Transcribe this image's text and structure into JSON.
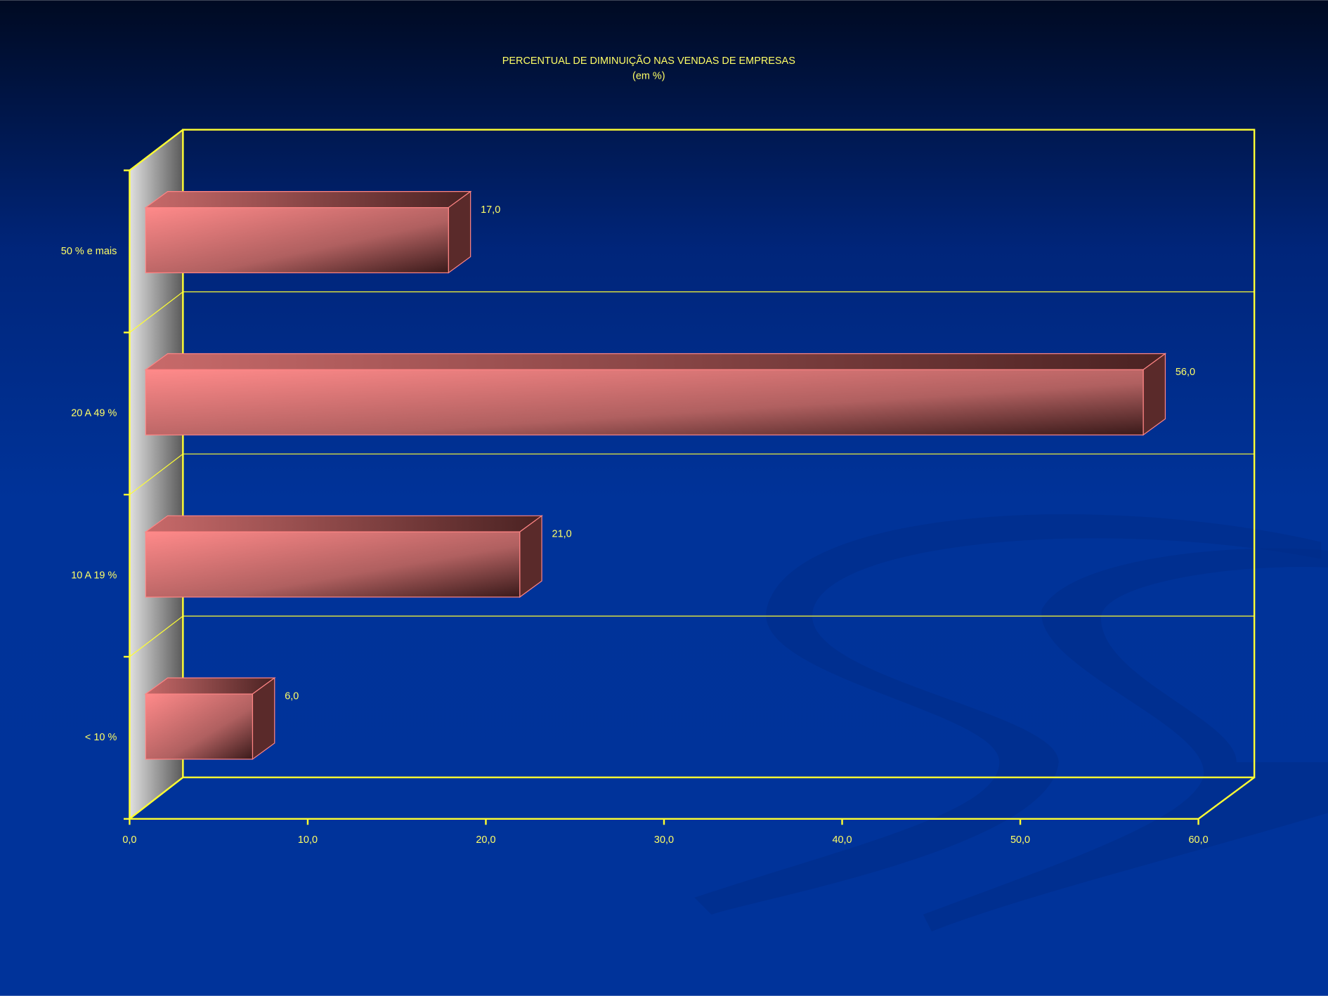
{
  "chart_data": {
    "type": "bar",
    "title": "PERCENTUAL DE DIMINUIÇÃO NAS VENDAS DE EMPRESAS",
    "subtitle": "(em %)",
    "categories": [
      "50 % e mais",
      "20 A 49 %",
      "10 A 19 %",
      "< 10 %"
    ],
    "values": [
      17,
      56,
      21,
      6
    ],
    "value_labels": [
      "17,0",
      "56,0",
      "21,0",
      "6,0"
    ],
    "color": "#ff8585",
    "xlim": [
      0,
      60
    ],
    "xticks": [
      {
        "value": 0,
        "label": "0,0"
      },
      {
        "value": 10,
        "label": "10,0"
      },
      {
        "value": 20,
        "label": "20,0"
      },
      {
        "value": 30,
        "label": "30,0"
      },
      {
        "value": 40,
        "label": "40,0"
      },
      {
        "value": 50,
        "label": "50,0"
      },
      {
        "value": 60,
        "label": "60,0"
      }
    ],
    "grid": true
  }
}
